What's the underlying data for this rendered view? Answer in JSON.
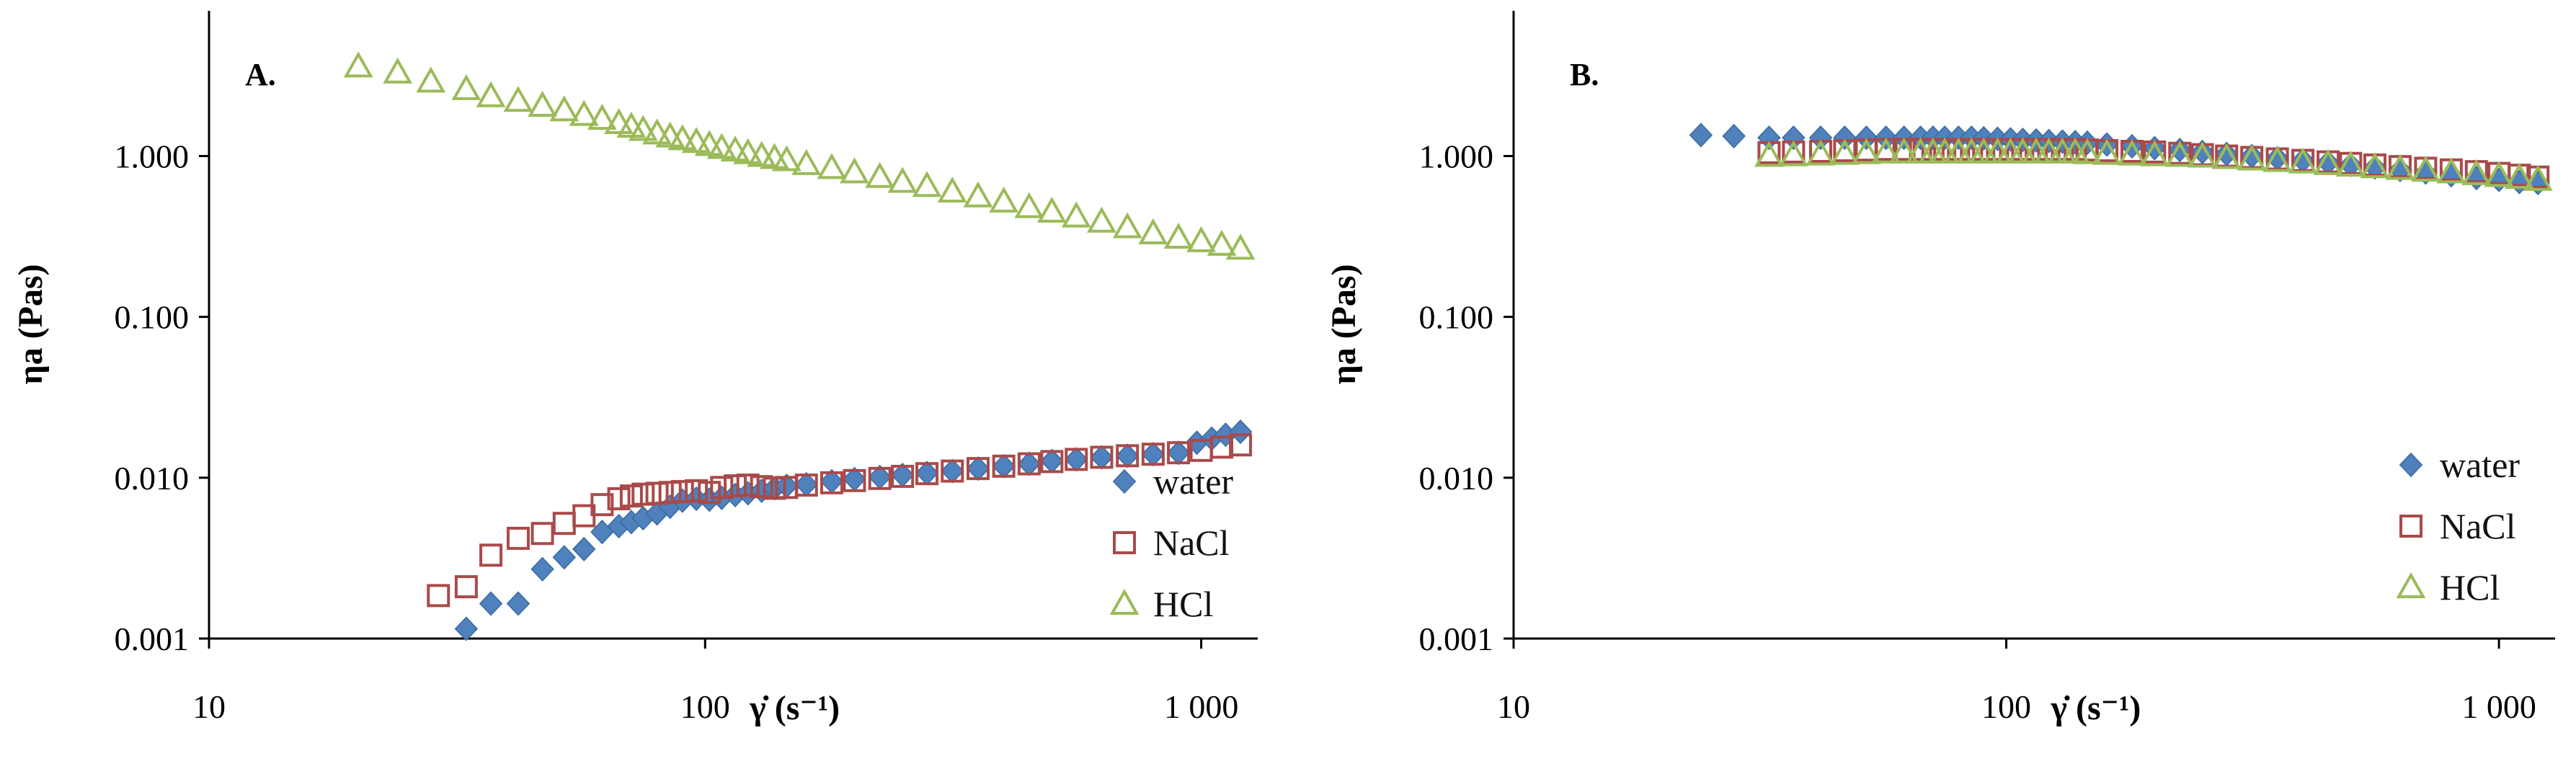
{
  "chart_data": [
    {
      "type": "scatter",
      "panel_label": "A.",
      "xlabel": "γ̇ (s⁻¹)",
      "ylabel": "ηa (Pas)",
      "xscale": "log",
      "yscale": "log",
      "xlim": [
        10,
        1300
      ],
      "ylim": [
        0.001,
        8
      ],
      "x_ticks": [
        10,
        100,
        1000
      ],
      "x_tick_labels": [
        "10",
        "100",
        "1 000"
      ],
      "y_ticks": [
        0.001,
        0.01,
        0.1,
        1
      ],
      "y_tick_labels": [
        "0.001",
        "0.010",
        "0.100",
        "1.000"
      ],
      "legend_position": "bottom-right",
      "series": [
        {
          "name": "water",
          "marker": "diamond",
          "color": "#4f81bd",
          "points": [
            [
              33,
              0.00115
            ],
            [
              37,
              0.00165
            ],
            [
              42,
              0.00165
            ],
            [
              47,
              0.0027
            ],
            [
              52,
              0.0032
            ],
            [
              57,
              0.0036
            ],
            [
              62,
              0.0046
            ],
            [
              67,
              0.005
            ],
            [
              71,
              0.0053
            ],
            [
              75,
              0.0056
            ],
            [
              80,
              0.006
            ],
            [
              85,
              0.0066
            ],
            [
              90,
              0.0072
            ],
            [
              96,
              0.0074
            ],
            [
              102,
              0.0073
            ],
            [
              108,
              0.0075
            ],
            [
              115,
              0.0078
            ],
            [
              122,
              0.008
            ],
            [
              130,
              0.0083
            ],
            [
              138,
              0.0086
            ],
            [
              146,
              0.0089
            ],
            [
              160,
              0.0091
            ],
            [
              180,
              0.0095
            ],
            [
              200,
              0.0098
            ],
            [
              225,
              0.0101
            ],
            [
              250,
              0.0104
            ],
            [
              280,
              0.0107
            ],
            [
              315,
              0.011
            ],
            [
              355,
              0.0114
            ],
            [
              400,
              0.0118
            ],
            [
              450,
              0.0122
            ],
            [
              500,
              0.0127
            ],
            [
              560,
              0.013
            ],
            [
              630,
              0.0134
            ],
            [
              710,
              0.0137
            ],
            [
              800,
              0.014
            ],
            [
              900,
              0.0143
            ],
            [
              980,
              0.0165
            ],
            [
              1050,
              0.0175
            ],
            [
              1120,
              0.0185
            ],
            [
              1200,
              0.0193
            ]
          ]
        },
        {
          "name": "NaCl",
          "marker": "square",
          "color": "#a94a4a",
          "points": [
            [
              29,
              0.00185
            ],
            [
              33,
              0.0021
            ],
            [
              37,
              0.0033
            ],
            [
              42,
              0.0042
            ],
            [
              47,
              0.0045
            ],
            [
              52,
              0.0052
            ],
            [
              57,
              0.0058
            ],
            [
              62,
              0.0068
            ],
            [
              67,
              0.0074
            ],
            [
              71,
              0.0077
            ],
            [
              75,
              0.0079
            ],
            [
              80,
              0.008
            ],
            [
              85,
              0.0081
            ],
            [
              90,
              0.0082
            ],
            [
              96,
              0.0083
            ],
            [
              102,
              0.0081
            ],
            [
              108,
              0.0087
            ],
            [
              115,
              0.0089
            ],
            [
              122,
              0.009
            ],
            [
              130,
              0.0088
            ],
            [
              138,
              0.0086
            ],
            [
              146,
              0.0087
            ],
            [
              160,
              0.009
            ],
            [
              180,
              0.0093
            ],
            [
              200,
              0.0096
            ],
            [
              225,
              0.0099
            ],
            [
              250,
              0.0102
            ],
            [
              280,
              0.0106
            ],
            [
              315,
              0.011
            ],
            [
              355,
              0.0114
            ],
            [
              400,
              0.0118
            ],
            [
              450,
              0.0122
            ],
            [
              500,
              0.0126
            ],
            [
              560,
              0.013
            ],
            [
              630,
              0.0134
            ],
            [
              710,
              0.0137
            ],
            [
              800,
              0.014
            ],
            [
              900,
              0.0143
            ],
            [
              1000,
              0.0148
            ],
            [
              1100,
              0.0155
            ],
            [
              1200,
              0.016
            ]
          ]
        },
        {
          "name": "HCl",
          "marker": "triangle",
          "color": "#9bbb59",
          "points": [
            [
              20,
              3.6
            ],
            [
              24,
              3.3
            ],
            [
              28,
              2.9
            ],
            [
              33,
              2.6
            ],
            [
              37,
              2.35
            ],
            [
              42,
              2.2
            ],
            [
              47,
              2.05
            ],
            [
              52,
              1.92
            ],
            [
              57,
              1.8
            ],
            [
              62,
              1.7
            ],
            [
              67,
              1.6
            ],
            [
              71,
              1.52
            ],
            [
              75,
              1.45
            ],
            [
              80,
              1.38
            ],
            [
              85,
              1.32
            ],
            [
              90,
              1.27
            ],
            [
              96,
              1.22
            ],
            [
              102,
              1.17
            ],
            [
              108,
              1.12
            ],
            [
              115,
              1.08
            ],
            [
              122,
              1.04
            ],
            [
              130,
              1.0
            ],
            [
              138,
              0.97
            ],
            [
              146,
              0.94
            ],
            [
              160,
              0.89
            ],
            [
              180,
              0.84
            ],
            [
              200,
              0.79
            ],
            [
              225,
              0.74
            ],
            [
              250,
              0.69
            ],
            [
              280,
              0.65
            ],
            [
              315,
              0.6
            ],
            [
              355,
              0.56
            ],
            [
              400,
              0.52
            ],
            [
              450,
              0.48
            ],
            [
              500,
              0.45
            ],
            [
              560,
              0.42
            ],
            [
              630,
              0.39
            ],
            [
              710,
              0.36
            ],
            [
              800,
              0.33
            ],
            [
              900,
              0.31
            ],
            [
              1000,
              0.295
            ],
            [
              1100,
              0.28
            ],
            [
              1200,
              0.265
            ]
          ]
        }
      ]
    },
    {
      "type": "scatter",
      "panel_label": "B.",
      "xlabel": "γ̇ (s⁻¹)",
      "ylabel": "ηa (Pas)",
      "xscale": "log",
      "yscale": "log",
      "xlim": [
        10,
        1300
      ],
      "ylim": [
        0.001,
        8
      ],
      "x_ticks": [
        10,
        100,
        1000
      ],
      "x_tick_labels": [
        "10",
        "100",
        "1 000"
      ],
      "y_ticks": [
        0.001,
        0.01,
        0.1,
        1
      ],
      "y_tick_labels": [
        "0.001",
        "0.010",
        "0.100",
        "1.000"
      ],
      "legend_position": "bottom-right",
      "series": [
        {
          "name": "water",
          "marker": "diamond",
          "color": "#4f81bd",
          "points": [
            [
              24,
              1.35
            ],
            [
              28,
              1.33
            ],
            [
              33,
              1.3
            ],
            [
              37,
              1.3
            ],
            [
              42,
              1.3
            ],
            [
              47,
              1.3
            ],
            [
              52,
              1.3
            ],
            [
              57,
              1.3
            ],
            [
              62,
              1.3
            ],
            [
              67,
              1.3
            ],
            [
              71,
              1.3
            ],
            [
              75,
              1.3
            ],
            [
              80,
              1.3
            ],
            [
              85,
              1.3
            ],
            [
              90,
              1.29
            ],
            [
              96,
              1.28
            ],
            [
              102,
              1.27
            ],
            [
              108,
              1.26
            ],
            [
              115,
              1.25
            ],
            [
              122,
              1.24
            ],
            [
              130,
              1.23
            ],
            [
              138,
              1.22
            ],
            [
              146,
              1.21
            ],
            [
              160,
              1.18
            ],
            [
              180,
              1.15
            ],
            [
              200,
              1.12
            ],
            [
              225,
              1.09
            ],
            [
              250,
              1.06
            ],
            [
              280,
              1.03
            ],
            [
              315,
              1.0
            ],
            [
              355,
              0.97
            ],
            [
              400,
              0.94
            ],
            [
              450,
              0.91
            ],
            [
              500,
              0.88
            ],
            [
              560,
              0.85
            ],
            [
              630,
              0.82
            ],
            [
              710,
              0.79
            ],
            [
              800,
              0.76
            ],
            [
              900,
              0.73
            ],
            [
              1000,
              0.71
            ],
            [
              1100,
              0.69
            ],
            [
              1200,
              0.68
            ]
          ]
        },
        {
          "name": "NaCl",
          "marker": "square",
          "color": "#a94a4a",
          "points": [
            [
              33,
              1.05
            ],
            [
              37,
              1.06
            ],
            [
              42,
              1.07
            ],
            [
              47,
              1.08
            ],
            [
              52,
              1.09
            ],
            [
              57,
              1.1
            ],
            [
              62,
              1.1
            ],
            [
              67,
              1.1
            ],
            [
              71,
              1.1
            ],
            [
              75,
              1.1
            ],
            [
              80,
              1.1
            ],
            [
              85,
              1.1
            ],
            [
              90,
              1.1
            ],
            [
              96,
              1.1
            ],
            [
              102,
              1.1
            ],
            [
              108,
              1.1
            ],
            [
              115,
              1.1
            ],
            [
              122,
              1.1
            ],
            [
              130,
              1.1
            ],
            [
              138,
              1.1
            ],
            [
              146,
              1.09
            ],
            [
              160,
              1.08
            ],
            [
              180,
              1.07
            ],
            [
              200,
              1.06
            ],
            [
              225,
              1.04
            ],
            [
              250,
              1.02
            ],
            [
              280,
              1.0
            ],
            [
              315,
              0.98
            ],
            [
              355,
              0.96
            ],
            [
              400,
              0.94
            ],
            [
              450,
              0.92
            ],
            [
              500,
              0.9
            ],
            [
              560,
              0.88
            ],
            [
              630,
              0.86
            ],
            [
              710,
              0.84
            ],
            [
              800,
              0.82
            ],
            [
              900,
              0.8
            ],
            [
              1000,
              0.78
            ],
            [
              1100,
              0.76
            ],
            [
              1200,
              0.74
            ]
          ]
        },
        {
          "name": "HCl",
          "marker": "triangle",
          "color": "#9bbb59",
          "points": [
            [
              33,
              1.0
            ],
            [
              37,
              1.01
            ],
            [
              42,
              1.02
            ],
            [
              47,
              1.03
            ],
            [
              52,
              1.04
            ],
            [
              57,
              1.05
            ],
            [
              62,
              1.05
            ],
            [
              67,
              1.05
            ],
            [
              71,
              1.05
            ],
            [
              75,
              1.05
            ],
            [
              80,
              1.05
            ],
            [
              85,
              1.05
            ],
            [
              90,
              1.05
            ],
            [
              96,
              1.05
            ],
            [
              102,
              1.05
            ],
            [
              108,
              1.05
            ],
            [
              115,
              1.05
            ],
            [
              122,
              1.05
            ],
            [
              130,
              1.05
            ],
            [
              138,
              1.05
            ],
            [
              146,
              1.04
            ],
            [
              160,
              1.03
            ],
            [
              180,
              1.02
            ],
            [
              200,
              1.01
            ],
            [
              225,
              1.0
            ],
            [
              250,
              0.99
            ],
            [
              280,
              0.97
            ],
            [
              315,
              0.95
            ],
            [
              355,
              0.93
            ],
            [
              400,
              0.91
            ],
            [
              450,
              0.89
            ],
            [
              500,
              0.87
            ],
            [
              560,
              0.85
            ],
            [
              630,
              0.83
            ],
            [
              710,
              0.81
            ],
            [
              800,
              0.79
            ],
            [
              900,
              0.77
            ],
            [
              1000,
              0.75
            ],
            [
              1100,
              0.73
            ],
            [
              1200,
              0.71
            ]
          ]
        }
      ]
    }
  ]
}
